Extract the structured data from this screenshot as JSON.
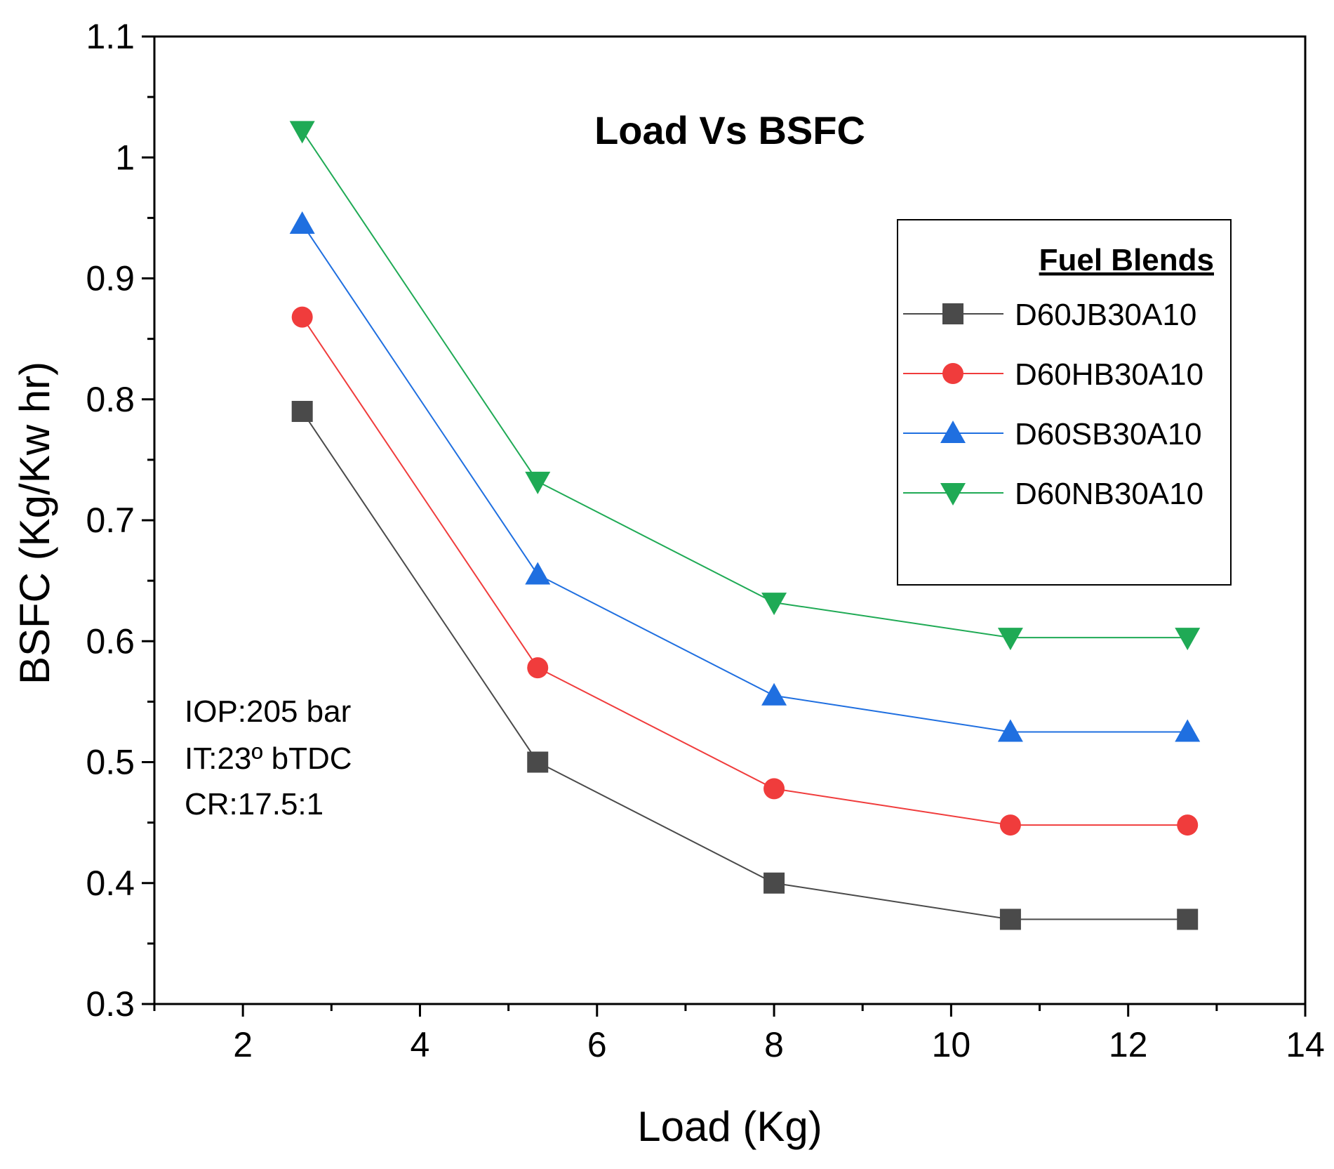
{
  "chart_data": {
    "type": "line",
    "title": "Load Vs BSFC",
    "xlabel": "Load (Kg)",
    "ylabel": "BSFC (Kg/Kw hr)",
    "xlim": [
      1,
      14
    ],
    "ylim": [
      0.3,
      1.1
    ],
    "xticks": [
      2,
      4,
      6,
      8,
      10,
      12,
      14
    ],
    "yticks": [
      0.3,
      0.4,
      0.5,
      0.6,
      0.7,
      0.8,
      0.9,
      1.0,
      1.1
    ],
    "ytick_labels": [
      "0.3",
      "0.4",
      "0.5",
      "0.6",
      "0.7",
      "0.8",
      "0.9",
      "1",
      "1.1"
    ],
    "x": [
      2.67,
      5.33,
      8.0,
      10.67,
      12.67
    ],
    "legend": {
      "title": "Fuel Blends",
      "placement": "top-right"
    },
    "annotation": [
      "IOP:205 bar",
      "IT:23º bTDC",
      "CR:17.5:1"
    ],
    "series": [
      {
        "name": "D60JB30A10",
        "marker": "square",
        "color": "#4a4a4a",
        "values": [
          0.79,
          0.5,
          0.4,
          0.37,
          0.37
        ]
      },
      {
        "name": "D60HB30A10",
        "marker": "circle",
        "color": "#f03c3c",
        "values": [
          0.868,
          0.578,
          0.478,
          0.448,
          0.448
        ]
      },
      {
        "name": "D60SB30A10",
        "marker": "triangle-up",
        "color": "#1f6fe0",
        "values": [
          0.945,
          0.655,
          0.555,
          0.525,
          0.525
        ]
      },
      {
        "name": "D60NB30A10",
        "marker": "triangle-down",
        "color": "#1faa55",
        "values": [
          1.022,
          0.732,
          0.632,
          0.603,
          0.603
        ]
      }
    ]
  }
}
